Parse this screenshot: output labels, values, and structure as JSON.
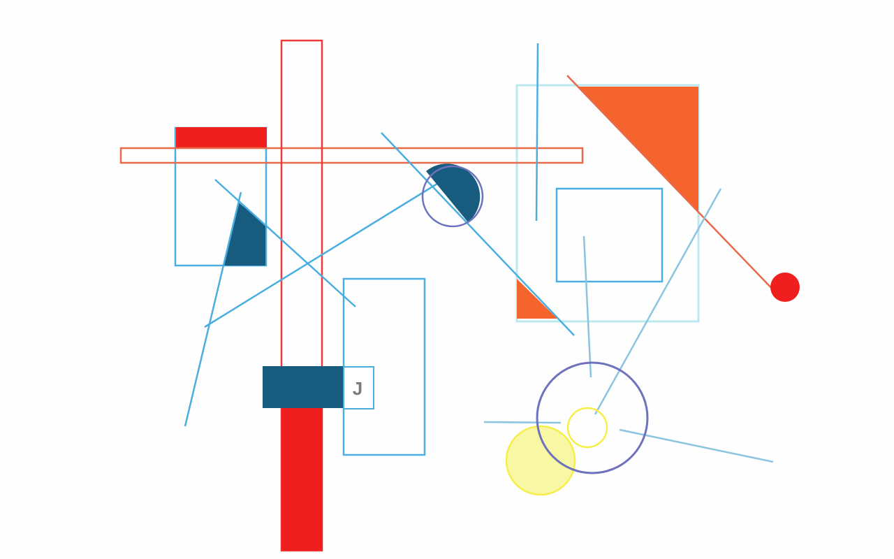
{
  "composition": {
    "glyph_label": "J",
    "palette": {
      "red": "#ef1f1f",
      "light_red": "#e86a4a",
      "orange": "#f4642c",
      "dark_teal": "#175c7e",
      "sky_blue": "#4aaee0",
      "pale_cyan": "#bde8ef",
      "indigo": "#6e72bd",
      "yellow": "#f6ef4a",
      "pale_yellow": "#f8f7a4",
      "gray": "#7a7a7a"
    }
  }
}
